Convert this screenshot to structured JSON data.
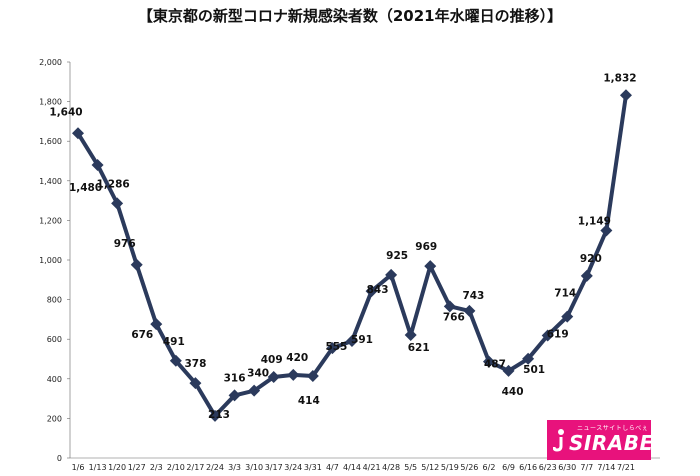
{
  "chart_data": {
    "type": "line",
    "title": "【東京都の新型コロナ新規感染者数（2021年水曜日の推移）】",
    "xlabel": "",
    "ylabel": "",
    "ylim": [
      0,
      2000
    ],
    "yticks": [
      0,
      200,
      400,
      600,
      800,
      1000,
      1200,
      1400,
      1600,
      1800,
      2000
    ],
    "ytick_labels": [
      "0",
      "200",
      "400",
      "600",
      "800",
      "1,000",
      "1,200",
      "1,400",
      "1,600",
      "1,800",
      "2,000"
    ],
    "grid": false,
    "legend": "none",
    "categories": [
      "1/6",
      "1/13",
      "1/20",
      "1/27",
      "2/3",
      "2/10",
      "2/17",
      "2/24",
      "3/3",
      "3/10",
      "3/17",
      "3/24",
      "3/31",
      "4/7",
      "4/14",
      "4/21",
      "4/28",
      "5/5",
      "5/12",
      "5/19",
      "5/26",
      "6/2",
      "6/9",
      "6/16",
      "6/23",
      "6/30",
      "7/7",
      "7/14",
      "7/21"
    ],
    "series": [
      {
        "values": [
          1640,
          1480,
          1286,
          976,
          676,
          491,
          378,
          213,
          316,
          340,
          409,
          420,
          414,
          555,
          591,
          843,
          925,
          621,
          969,
          766,
          743,
          487,
          440,
          501,
          619,
          714,
          920,
          1149,
          1832
        ],
        "labels": [
          "1,640",
          "1,480",
          "1,286",
          "976",
          "676",
          "491",
          "378",
          "213",
          "316",
          "340",
          "409",
          "420",
          "414",
          "555",
          "591",
          "843",
          "925",
          "621",
          "969",
          "766",
          "743",
          "487",
          "440",
          "501",
          "619",
          "714",
          "920",
          "1,149",
          "1,832"
        ]
      }
    ],
    "colors": {
      "line": "#2b3a5c",
      "marker": "#2b3a5c"
    }
  },
  "logo": {
    "sub_text": "ニュースサイトしらべぇ",
    "main_text": "SIRABEE",
    "bg_color": "#e8127c"
  }
}
